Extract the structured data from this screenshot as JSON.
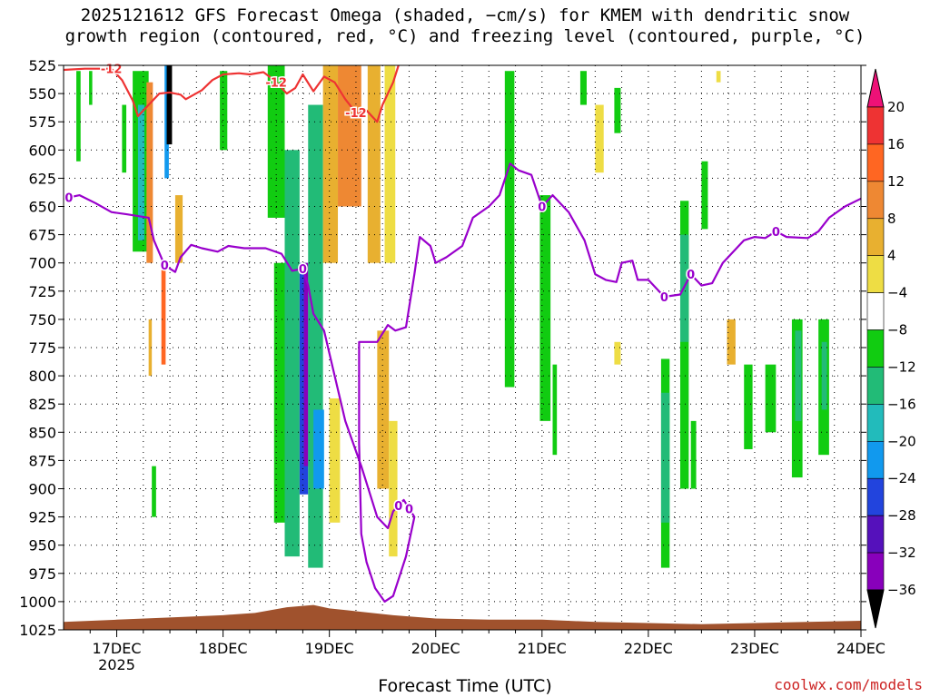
{
  "header": {
    "line1": "2025121612 GFS Forecast Omega (shaded, −cm/s) for KMEM with dendritic snow",
    "line2": "growth region (contoured, red, °C) and freezing level (contoured, purple, °C)"
  },
  "footer": {
    "xlabel": "Forecast Time (UTC)",
    "credit": "coolwx.com/models"
  },
  "colors": {
    "red_contour": "#ee3333",
    "purple_contour": "#9900cc",
    "ground": "#a0522d"
  },
  "chart_data": {
    "type": "heatmap",
    "title": "2025121612 GFS Forecast Omega (shaded, −cm/s) for KMEM with dendritic snow growth region (contoured, red, °C) and freezing level (contoured, purple, °C)",
    "xlabel": "Forecast Time (UTC)",
    "ylabel": "",
    "y_scale": "pressure (hPa), inverted",
    "ylim": [
      1025,
      525
    ],
    "y_ticks": [
      525,
      550,
      575,
      600,
      625,
      650,
      675,
      700,
      725,
      750,
      775,
      800,
      825,
      850,
      875,
      900,
      925,
      950,
      975,
      1000,
      1025
    ],
    "xlim": [
      16.5,
      24.0
    ],
    "x_ticks": [
      {
        "day": 17,
        "label": "17DEC",
        "sub": "2025"
      },
      {
        "day": 18,
        "label": "18DEC",
        "sub": ""
      },
      {
        "day": 19,
        "label": "19DEC",
        "sub": ""
      },
      {
        "day": 20,
        "label": "20DEC",
        "sub": ""
      },
      {
        "day": 21,
        "label": "21DEC",
        "sub": ""
      },
      {
        "day": 22,
        "label": "22DEC",
        "sub": ""
      },
      {
        "day": 23,
        "label": "23DEC",
        "sub": ""
      },
      {
        "day": 24,
        "label": "24DEC",
        "sub": ""
      }
    ],
    "grid": true,
    "colorbar": {
      "labels": [
        "20",
        "16",
        "12",
        "8",
        "4",
        "−4",
        "−8",
        "−12",
        "−16",
        "−20",
        "−24",
        "−28",
        "−32",
        "−36"
      ],
      "bands": [
        "#ee1177",
        "#ee3333",
        "#ff6622",
        "#ee8833",
        "#e8b030",
        "#eedd44",
        "#ffffff",
        "#11cc11",
        "#22bb77",
        "#22bbbb",
        "#1199ee",
        "#2244dd",
        "#5511bb",
        "#8800bb",
        "#9999a0",
        "#000000"
      ]
    },
    "omega_regions": [
      {
        "x": [
          16.62,
          16.66
        ],
        "p": [
          530,
          610
        ],
        "v": -5
      },
      {
        "x": [
          16.74,
          16.77
        ],
        "p": [
          530,
          560
        ],
        "v": -5
      },
      {
        "x": [
          17.05,
          17.09
        ],
        "p": [
          560,
          620
        ],
        "v": -5
      },
      {
        "x": [
          17.15,
          17.3
        ],
        "p": [
          530,
          690
        ],
        "v": -6
      },
      {
        "x": [
          17.2,
          17.26
        ],
        "p": [
          560,
          680
        ],
        "v": -12
      },
      {
        "x": [
          17.28,
          17.34
        ],
        "p": [
          540,
          700
        ],
        "v": 10
      },
      {
        "x": [
          17.3,
          17.33
        ],
        "p": [
          750,
          800
        ],
        "v": 6
      },
      {
        "x": [
          17.33,
          17.37
        ],
        "p": [
          880,
          925
        ],
        "v": -5
      },
      {
        "x": [
          17.42,
          17.46
        ],
        "p": [
          700,
          790
        ],
        "v": 12
      },
      {
        "x": [
          17.45,
          17.49
        ],
        "p": [
          525,
          625
        ],
        "v": -16
      },
      {
        "x": [
          17.47,
          17.52
        ],
        "p": [
          525,
          595
        ],
        "v": -36
      },
      {
        "x": [
          17.55,
          17.62
        ],
        "p": [
          640,
          700
        ],
        "v": 6
      },
      {
        "x": [
          17.97,
          18.04
        ],
        "p": [
          530,
          600
        ],
        "v": -5
      },
      {
        "x": [
          18.42,
          18.58
        ],
        "p": [
          525,
          660
        ],
        "v": -5
      },
      {
        "x": [
          18.48,
          18.62
        ],
        "p": [
          700,
          930
        ],
        "v": -7
      },
      {
        "x": [
          18.58,
          18.72
        ],
        "p": [
          600,
          960
        ],
        "v": -10
      },
      {
        "x": [
          18.72,
          18.8
        ],
        "p": [
          700,
          905
        ],
        "v": -20
      },
      {
        "x": [
          18.76,
          18.8
        ],
        "p": [
          700,
          880
        ],
        "v": -28
      },
      {
        "x": [
          18.8,
          18.94
        ],
        "p": [
          560,
          970
        ],
        "v": -10
      },
      {
        "x": [
          18.85,
          18.95
        ],
        "p": [
          830,
          900
        ],
        "v": -16
      },
      {
        "x": [
          18.94,
          19.08
        ],
        "p": [
          525,
          700
        ],
        "v": 6
      },
      {
        "x": [
          19.0,
          19.1
        ],
        "p": [
          820,
          930
        ],
        "v": 5
      },
      {
        "x": [
          19.08,
          19.3
        ],
        "p": [
          525,
          650
        ],
        "v": 10
      },
      {
        "x": [
          19.36,
          19.48
        ],
        "p": [
          525,
          700
        ],
        "v": 7
      },
      {
        "x": [
          19.45,
          19.56
        ],
        "p": [
          760,
          900
        ],
        "v": 6
      },
      {
        "x": [
          19.52,
          19.62
        ],
        "p": [
          525,
          700
        ],
        "v": 5
      },
      {
        "x": [
          19.56,
          19.64
        ],
        "p": [
          840,
          960
        ],
        "v": 5
      },
      {
        "x": [
          20.65,
          20.74
        ],
        "p": [
          530,
          810
        ],
        "v": -6
      },
      {
        "x": [
          20.98,
          21.08
        ],
        "p": [
          640,
          840
        ],
        "v": -5
      },
      {
        "x": [
          21.1,
          21.14
        ],
        "p": [
          790,
          870
        ],
        "v": -5
      },
      {
        "x": [
          21.36,
          21.42
        ],
        "p": [
          530,
          560
        ],
        "v": -5
      },
      {
        "x": [
          21.5,
          21.58
        ],
        "p": [
          560,
          620
        ],
        "v": 5
      },
      {
        "x": [
          21.68,
          21.74
        ],
        "p": [
          545,
          585
        ],
        "v": -5
      },
      {
        "x": [
          21.68,
          21.74
        ],
        "p": [
          770,
          790
        ],
        "v": 5
      },
      {
        "x": [
          22.12,
          22.2
        ],
        "p": [
          785,
          970
        ],
        "v": -6
      },
      {
        "x": [
          22.12,
          22.2
        ],
        "p": [
          815,
          930
        ],
        "v": -10
      },
      {
        "x": [
          22.3,
          22.38
        ],
        "p": [
          645,
          900
        ],
        "v": -6
      },
      {
        "x": [
          22.3,
          22.38
        ],
        "p": [
          675,
          770
        ],
        "v": -10
      },
      {
        "x": [
          22.4,
          22.45
        ],
        "p": [
          840,
          900
        ],
        "v": -5
      },
      {
        "x": [
          22.5,
          22.56
        ],
        "p": [
          610,
          670
        ],
        "v": -5
      },
      {
        "x": [
          22.64,
          22.68
        ],
        "p": [
          530,
          540
        ],
        "v": 5
      },
      {
        "x": [
          22.74,
          22.82
        ],
        "p": [
          750,
          790
        ],
        "v": 6
      },
      {
        "x": [
          22.9,
          22.98
        ],
        "p": [
          790,
          865
        ],
        "v": -5
      },
      {
        "x": [
          23.1,
          23.2
        ],
        "p": [
          790,
          850
        ],
        "v": -6
      },
      {
        "x": [
          23.35,
          23.45
        ],
        "p": [
          750,
          890
        ],
        "v": -6
      },
      {
        "x": [
          23.38,
          23.44
        ],
        "p": [
          760,
          840
        ],
        "v": -9
      },
      {
        "x": [
          23.6,
          23.7
        ],
        "p": [
          750,
          870
        ],
        "v": -6
      },
      {
        "x": [
          23.63,
          23.68
        ],
        "p": [
          770,
          830
        ],
        "v": -9
      }
    ],
    "dgz_contour": {
      "label": "-12",
      "points": [
        [
          16.5,
          529
        ],
        [
          16.7,
          528
        ],
        [
          16.95,
          528
        ],
        [
          17.05,
          538
        ],
        [
          17.15,
          556
        ],
        [
          17.2,
          570
        ],
        [
          17.3,
          560
        ],
        [
          17.4,
          550
        ],
        [
          17.5,
          549
        ],
        [
          17.6,
          551
        ],
        [
          17.65,
          555
        ],
        [
          17.8,
          547
        ],
        [
          17.9,
          538
        ],
        [
          18.0,
          533
        ],
        [
          18.15,
          532
        ],
        [
          18.25,
          533
        ],
        [
          18.38,
          531
        ],
        [
          18.48,
          538
        ],
        [
          18.55,
          545
        ],
        [
          18.6,
          550
        ],
        [
          18.68,
          545
        ],
        [
          18.75,
          533
        ],
        [
          18.85,
          548
        ],
        [
          18.95,
          535
        ],
        [
          19.05,
          540
        ],
        [
          19.15,
          555
        ],
        [
          19.25,
          567
        ],
        [
          19.35,
          565
        ],
        [
          19.45,
          575
        ],
        [
          19.5,
          560
        ],
        [
          19.6,
          540
        ],
        [
          19.65,
          525
        ]
      ],
      "label_x": [
        16.95,
        18.5,
        19.25
      ]
    },
    "freezing_level": {
      "label": "0",
      "points": [
        [
          16.5,
          643
        ],
        [
          16.65,
          640
        ],
        [
          16.8,
          647
        ],
        [
          16.95,
          655
        ],
        [
          17.1,
          657
        ],
        [
          17.3,
          660
        ],
        [
          17.35,
          680
        ],
        [
          17.45,
          702
        ],
        [
          17.55,
          708
        ],
        [
          17.6,
          695
        ],
        [
          17.7,
          684
        ],
        [
          17.8,
          687
        ],
        [
          17.95,
          690
        ],
        [
          18.05,
          685
        ],
        [
          18.2,
          687
        ],
        [
          18.4,
          687
        ],
        [
          18.55,
          692
        ],
        [
          18.65,
          707
        ],
        [
          18.75,
          705
        ],
        [
          18.8,
          720
        ],
        [
          18.85,
          745
        ],
        [
          18.95,
          760
        ],
        [
          19.05,
          800
        ],
        [
          19.15,
          840
        ],
        [
          19.3,
          880
        ],
        [
          19.45,
          925
        ],
        [
          19.55,
          935
        ],
        [
          19.6,
          920
        ],
        [
          19.7,
          910
        ],
        [
          19.8,
          925
        ],
        [
          19.72,
          960
        ],
        [
          19.6,
          995
        ],
        [
          19.52,
          1000
        ],
        [
          19.43,
          988
        ],
        [
          19.35,
          965
        ],
        [
          19.3,
          940
        ],
        [
          19.28,
          860
        ],
        [
          19.28,
          770
        ],
        [
          19.45,
          770
        ],
        [
          19.55,
          755
        ],
        [
          19.62,
          760
        ],
        [
          19.72,
          757
        ],
        [
          19.8,
          710
        ],
        [
          19.85,
          677
        ],
        [
          19.95,
          685
        ],
        [
          20.0,
          700
        ],
        [
          20.1,
          695
        ],
        [
          20.25,
          685
        ],
        [
          20.35,
          660
        ],
        [
          20.5,
          650
        ],
        [
          20.6,
          640
        ],
        [
          20.7,
          612
        ],
        [
          20.78,
          618
        ],
        [
          20.9,
          622
        ],
        [
          21.0,
          650
        ],
        [
          21.1,
          640
        ],
        [
          21.25,
          655
        ],
        [
          21.4,
          680
        ],
        [
          21.5,
          710
        ],
        [
          21.6,
          715
        ],
        [
          21.7,
          717
        ],
        [
          21.75,
          700
        ],
        [
          21.85,
          698
        ],
        [
          21.9,
          715
        ],
        [
          22.0,
          715
        ],
        [
          22.15,
          730
        ],
        [
          22.3,
          728
        ],
        [
          22.4,
          710
        ],
        [
          22.5,
          720
        ],
        [
          22.6,
          718
        ],
        [
          22.7,
          700
        ],
        [
          22.8,
          690
        ],
        [
          22.9,
          680
        ],
        [
          23.0,
          677
        ],
        [
          23.1,
          678
        ],
        [
          23.2,
          672
        ],
        [
          23.3,
          677
        ],
        [
          23.5,
          678
        ],
        [
          23.6,
          672
        ],
        [
          23.7,
          660
        ],
        [
          23.85,
          650
        ],
        [
          24.0,
          643
        ]
      ],
      "label_x": [
        16.55,
        17.45,
        18.75,
        19.65,
        19.75,
        21.0,
        22.15,
        22.4,
        23.2
      ]
    },
    "surface": {
      "points": [
        [
          16.5,
          1018
        ],
        [
          17.0,
          1016
        ],
        [
          17.5,
          1014
        ],
        [
          18.0,
          1012
        ],
        [
          18.3,
          1010
        ],
        [
          18.6,
          1005
        ],
        [
          18.85,
          1003
        ],
        [
          19.0,
          1006
        ],
        [
          19.3,
          1009
        ],
        [
          19.6,
          1012
        ],
        [
          20.0,
          1015
        ],
        [
          20.5,
          1016
        ],
        [
          21.0,
          1016
        ],
        [
          21.5,
          1018
        ],
        [
          22.0,
          1019
        ],
        [
          22.5,
          1020
        ],
        [
          23.0,
          1019
        ],
        [
          23.5,
          1018
        ],
        [
          24.0,
          1017
        ]
      ]
    }
  }
}
